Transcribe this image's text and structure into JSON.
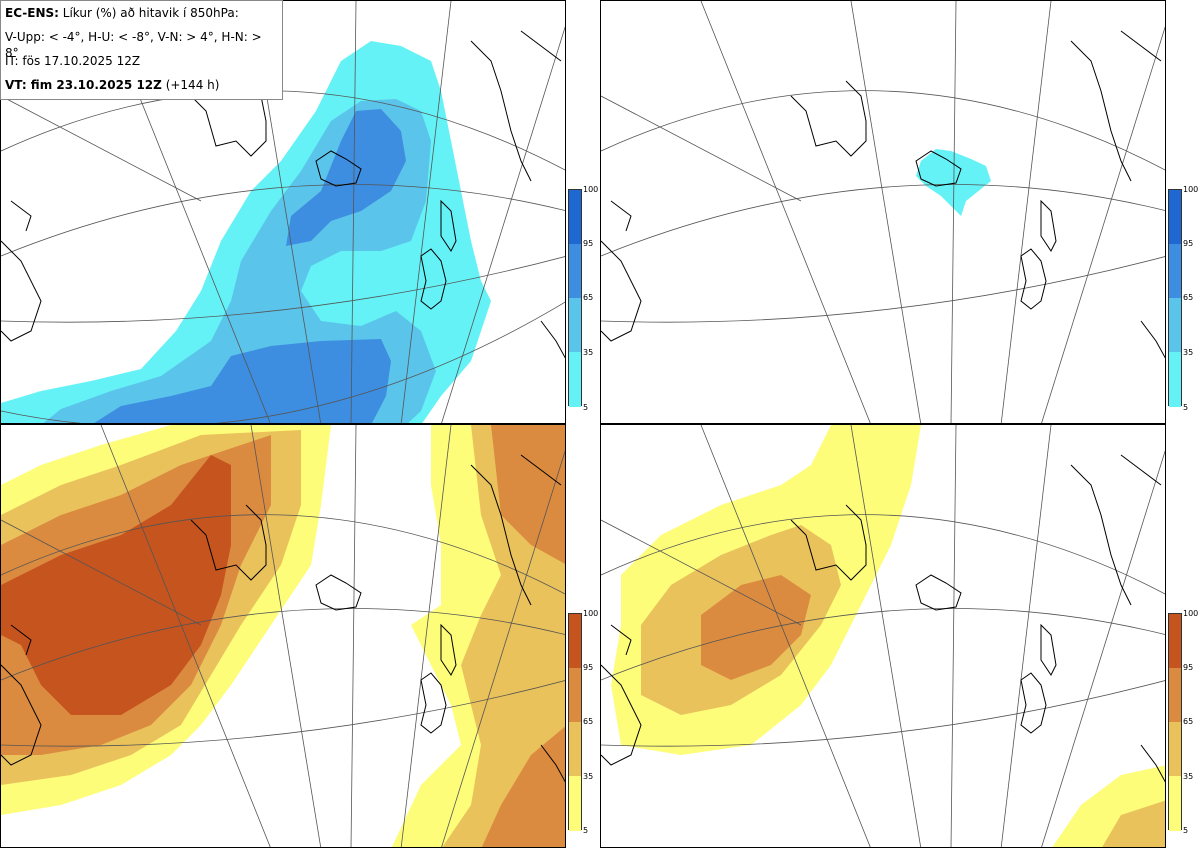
{
  "info": {
    "line1_bold": "EC-ENS:",
    "line1_rest": " Líkur (%) að hitavik í 850hPa:",
    "line2": "V-Upp: < -4°, H-U: < -8°, V-N: > 4°, H-N: > 8°",
    "line3": "IT: fös 17.10.2025 12Z",
    "line4_bold": "VT: fim 23.10.2025 12Z",
    "line4_rest": " (+144 h)"
  },
  "colorbars": {
    "cold": {
      "ticks": [
        "100",
        "95",
        "65",
        "35",
        "5"
      ],
      "colors": [
        "#1f68d2",
        "#3d8ee0",
        "#5bc4ea",
        "#64f2f7"
      ]
    },
    "warm": {
      "ticks": [
        "100",
        "95",
        "65",
        "35",
        "5"
      ],
      "colors": [
        "#c6541e",
        "#db8b3f",
        "#eac25b",
        "#fdfd7a"
      ]
    }
  },
  "panels": [
    {
      "id": "upper-left",
      "variant": "cold"
    },
    {
      "id": "upper-right",
      "variant": "cold"
    },
    {
      "id": "lower-left",
      "variant": "warm"
    },
    {
      "id": "lower-right",
      "variant": "warm"
    }
  ]
}
